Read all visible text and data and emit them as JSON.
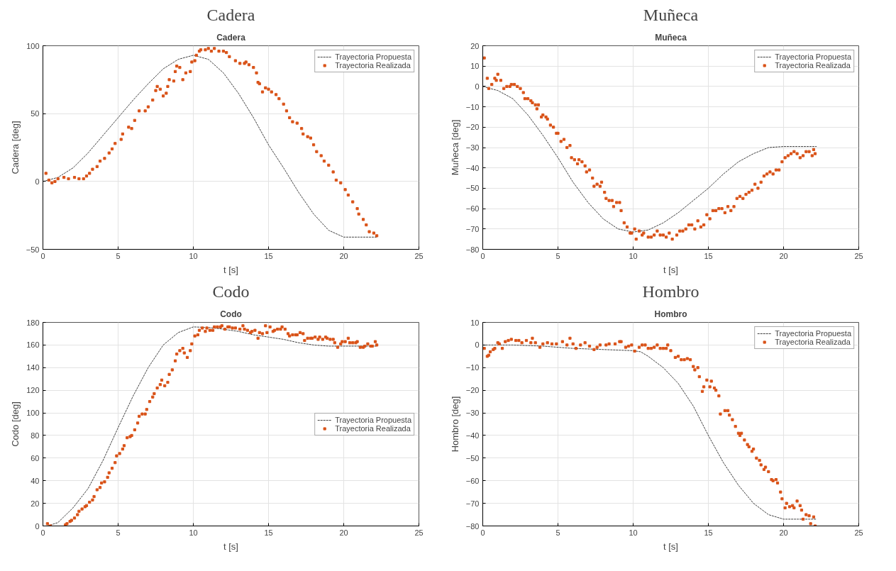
{
  "chart_data": [
    {
      "type": "scatter",
      "title": "Cadera",
      "subtitle": "Cadera",
      "xlabel": "t [s]",
      "ylabel": "Cadera [deg]",
      "xlim": [
        0,
        25
      ],
      "xticks": [
        0,
        5,
        10,
        15,
        20,
        25
      ],
      "ylim": [
        -50,
        100
      ],
      "yticks": [
        -50,
        0,
        50,
        100
      ],
      "grid": true,
      "legend": "top right",
      "series": [
        {
          "name": "Trayectoria Propuesta",
          "type": "line",
          "line_style": "dashed",
          "marker": "none",
          "color": "#404040",
          "x": [
            0,
            1,
            2,
            3,
            4,
            5,
            6,
            7,
            8,
            9,
            10,
            11,
            12,
            13,
            14,
            15,
            16,
            17,
            18,
            19,
            20,
            21,
            22.2
          ],
          "values": [
            0,
            3,
            10,
            21,
            34,
            47,
            60,
            72,
            83,
            90,
            93,
            90,
            80,
            65,
            47,
            27,
            10,
            -8,
            -24,
            -36,
            -41,
            -41,
            -41
          ]
        },
        {
          "name": "Trayectoria Realizada",
          "type": "scatter",
          "marker": "square",
          "color": "#d95319",
          "x": [
            0.2,
            0.4,
            0.6,
            0.8,
            1.0,
            1.4,
            1.7,
            2.1,
            2.4,
            2.7,
            2.9,
            3.1,
            3.3,
            3.6,
            3.8,
            4.1,
            4.4,
            4.6,
            4.8,
            5.2,
            5.3,
            5.7,
            5.9,
            6.1,
            6.4,
            6.8,
            7.0,
            7.3,
            7.5,
            7.6,
            7.8,
            8.0,
            8.2,
            8.3,
            8.4,
            8.7,
            8.8,
            8.9,
            9.1,
            9.3,
            9.5,
            9.8,
            9.9,
            10.1,
            10.2,
            10.4,
            10.5,
            10.8,
            11.0,
            11.2,
            11.4,
            11.7,
            12.0,
            12.2,
            12.4,
            12.8,
            13.1,
            13.4,
            13.5,
            13.7,
            14.0,
            14.2,
            14.3,
            14.4,
            14.6,
            14.8,
            15.0,
            15.2,
            15.5,
            15.7,
            16.0,
            16.2,
            16.4,
            16.6,
            16.9,
            17.2,
            17.3,
            17.6,
            17.8,
            18.0,
            18.2,
            18.5,
            18.7,
            19.0,
            19.3,
            19.5,
            19.8,
            20.1,
            20.3,
            20.6,
            20.9,
            21.0,
            21.3,
            21.5,
            21.7,
            22.0,
            22.2
          ],
          "values": [
            6,
            1,
            -1,
            0,
            2,
            3,
            2,
            3,
            2,
            2,
            4,
            6,
            9,
            11,
            15,
            17,
            21,
            24,
            28,
            31,
            35,
            40,
            39,
            45,
            52,
            52,
            55,
            60,
            67,
            70,
            68,
            63,
            65,
            70,
            75,
            74,
            81,
            85,
            84,
            75,
            80,
            81,
            88,
            89,
            93,
            96,
            97,
            97,
            98,
            96,
            98,
            96,
            96,
            95,
            92,
            89,
            87,
            87,
            88,
            86,
            84,
            80,
            73,
            72,
            66,
            69,
            68,
            66,
            64,
            61,
            57,
            52,
            47,
            44,
            43,
            39,
            35,
            33,
            32,
            27,
            22,
            19,
            15,
            12,
            7,
            1,
            -1,
            -6,
            -10,
            -15,
            -20,
            -24,
            -28,
            -32,
            -37,
            -38,
            -40
          ]
        }
      ]
    },
    {
      "type": "scatter",
      "title": "Muñeca",
      "subtitle": "Muñeca",
      "xlabel": "t [s]",
      "ylabel": "Muñeca [deg]",
      "xlim": [
        0,
        25
      ],
      "xticks": [
        0,
        5,
        10,
        15,
        20,
        25
      ],
      "ylim": [
        -80,
        20
      ],
      "yticks": [
        -80,
        -70,
        -60,
        -50,
        -40,
        -30,
        -20,
        -10,
        0,
        10,
        20
      ],
      "grid": true,
      "legend": "top right",
      "series": [
        {
          "name": "Trayectoria Propuesta",
          "type": "line",
          "line_style": "dashed",
          "marker": "none",
          "color": "#404040",
          "x": [
            0,
            1,
            2,
            3,
            4,
            5,
            6,
            7,
            8,
            9,
            10,
            11,
            12,
            13,
            14,
            15,
            16,
            17,
            18,
            19,
            20,
            21,
            22.2
          ],
          "values": [
            0,
            -2,
            -6,
            -14,
            -24,
            -35,
            -47,
            -57,
            -65,
            -70,
            -71.5,
            -70.5,
            -67,
            -62,
            -56,
            -50,
            -43,
            -37,
            -33,
            -30,
            -29.5,
            -29.5,
            -29.5
          ]
        },
        {
          "name": "Trayectoria Realizada",
          "type": "scatter",
          "marker": "square",
          "color": "#d95319",
          "x": [
            0.1,
            0.3,
            0.4,
            0.6,
            0.8,
            0.9,
            1.0,
            1.2,
            1.4,
            1.6,
            1.8,
            1.9,
            2.1,
            2.3,
            2.5,
            2.7,
            2.8,
            3.0,
            3.2,
            3.3,
            3.5,
            3.6,
            3.7,
            3.9,
            4.0,
            4.2,
            4.3,
            4.5,
            4.7,
            4.9,
            5.0,
            5.2,
            5.4,
            5.6,
            5.8,
            5.9,
            6.1,
            6.3,
            6.4,
            6.6,
            6.8,
            6.9,
            7.1,
            7.3,
            7.4,
            7.6,
            7.8,
            7.9,
            8.1,
            8.2,
            8.4,
            8.6,
            8.7,
            8.9,
            9.1,
            9.2,
            9.4,
            9.6,
            9.8,
            9.9,
            10.1,
            10.2,
            10.4,
            10.6,
            10.7,
            11.0,
            11.2,
            11.4,
            11.6,
            11.8,
            12.0,
            12.2,
            12.4,
            12.6,
            12.9,
            13.1,
            13.3,
            13.5,
            13.7,
            13.9,
            14.1,
            14.3,
            14.5,
            14.7,
            14.9,
            15.1,
            15.3,
            15.5,
            15.7,
            15.9,
            16.1,
            16.3,
            16.5,
            16.7,
            16.9,
            17.1,
            17.3,
            17.5,
            17.7,
            17.9,
            18.1,
            18.3,
            18.5,
            18.7,
            18.9,
            19.1,
            19.3,
            19.5,
            19.7,
            19.9,
            20.1,
            20.3,
            20.5,
            20.7,
            20.9,
            21.1,
            21.3,
            21.5,
            21.7,
            21.9,
            22.0,
            22.1
          ],
          "values": [
            14,
            4,
            -1,
            1,
            4,
            3,
            6,
            3,
            -1,
            0,
            0,
            1,
            1,
            0,
            -1,
            -3,
            -6,
            -6,
            -7,
            -8,
            -9,
            -11,
            -9,
            -15,
            -14,
            -15,
            -16,
            -19,
            -20,
            -23,
            -23,
            -27,
            -26,
            -30,
            -29,
            -35,
            -36,
            -38,
            -36,
            -37,
            -39,
            -42,
            -41,
            -45,
            -49,
            -48,
            -49,
            -47,
            -52,
            -55,
            -56,
            -56,
            -59,
            -57,
            -57,
            -61,
            -67,
            -69,
            -72,
            -72,
            -70,
            -75,
            -71,
            -73,
            -72,
            -74,
            -74,
            -73,
            -71,
            -73,
            -73,
            -74,
            -72,
            -75,
            -73,
            -71,
            -71,
            -70,
            -68,
            -68,
            -70,
            -66,
            -69,
            -68,
            -63,
            -65,
            -61,
            -61,
            -60,
            -60,
            -62,
            -59,
            -61,
            -59,
            -55,
            -54,
            -55,
            -53,
            -52,
            -51,
            -48,
            -50,
            -47,
            -44,
            -43,
            -42,
            -43,
            -41,
            -41,
            -37,
            -35,
            -34,
            -33,
            -32,
            -33,
            -35,
            -34,
            -32,
            -32,
            -34,
            -31,
            -33
          ]
        }
      ]
    },
    {
      "type": "scatter",
      "title": "Codo",
      "subtitle": "Codo",
      "xlabel": "t [s]",
      "ylabel": "Codo [deg]",
      "xlim": [
        0,
        25
      ],
      "xticks": [
        0,
        5,
        10,
        15,
        20,
        25
      ],
      "ylim": [
        0,
        180
      ],
      "yticks": [
        0,
        20,
        40,
        60,
        80,
        100,
        120,
        140,
        160,
        180
      ],
      "grid": true,
      "legend": "right",
      "series": [
        {
          "name": "Trayectoria Propuesta",
          "type": "line",
          "line_style": "dashed",
          "marker": "none",
          "color": "#404040",
          "x": [
            0.3,
            1,
            2,
            3,
            4,
            5,
            6,
            7,
            8,
            9,
            10,
            11,
            12,
            13,
            14,
            15,
            16,
            17,
            18,
            19,
            20,
            21,
            22.2
          ],
          "values": [
            0,
            3,
            16,
            33,
            58,
            87,
            115,
            140,
            160,
            171,
            176,
            175.5,
            174,
            172,
            169,
            167,
            165,
            162,
            160,
            159,
            159,
            159,
            159
          ]
        },
        {
          "name": "Trayectoria Realizada",
          "type": "scatter",
          "marker": "square",
          "color": "#d95319",
          "x": [
            0.3,
            0.5,
            1.5,
            1.6,
            1.8,
            1.9,
            2.1,
            2.3,
            2.4,
            2.6,
            2.8,
            2.9,
            3.1,
            3.3,
            3.4,
            3.6,
            3.8,
            3.9,
            4.1,
            4.3,
            4.4,
            4.6,
            4.8,
            4.9,
            5.1,
            5.3,
            5.4,
            5.6,
            5.8,
            5.9,
            6.1,
            6.3,
            6.4,
            6.6,
            6.8,
            6.9,
            7.1,
            7.3,
            7.4,
            7.6,
            7.8,
            7.9,
            8.1,
            8.3,
            8.4,
            8.6,
            8.8,
            8.9,
            9.1,
            9.3,
            9.4,
            9.6,
            9.8,
            9.9,
            10.1,
            10.3,
            10.4,
            10.6,
            10.8,
            10.9,
            11.1,
            11.3,
            11.4,
            11.6,
            11.8,
            11.9,
            12.1,
            12.3,
            12.4,
            12.6,
            12.8,
            13.1,
            13.3,
            13.4,
            13.6,
            13.8,
            13.9,
            14.1,
            14.3,
            14.4,
            14.6,
            14.8,
            14.9,
            15.1,
            15.3,
            15.4,
            15.6,
            15.8,
            15.9,
            16.1,
            16.3,
            16.4,
            16.6,
            16.8,
            16.9,
            17.1,
            17.3,
            17.4,
            17.6,
            17.8,
            17.9,
            18.1,
            18.3,
            18.4,
            18.6,
            18.8,
            18.9,
            19.1,
            19.3,
            19.4,
            19.6,
            19.8,
            19.9,
            20.1,
            20.3,
            20.4,
            20.6,
            20.8,
            20.9,
            21.1,
            21.3,
            21.4,
            21.6,
            21.8,
            21.9,
            22.1,
            22.2
          ],
          "values": [
            2,
            0,
            1,
            2,
            4,
            5,
            7,
            10,
            13,
            15,
            17,
            18,
            21,
            23,
            26,
            32,
            34,
            38,
            39,
            43,
            47,
            51,
            56,
            62,
            64,
            68,
            71,
            78,
            79,
            80,
            85,
            91,
            97,
            99,
            99,
            103,
            110,
            114,
            117,
            122,
            125,
            129,
            124,
            127,
            134,
            138,
            146,
            152,
            155,
            157,
            153,
            149,
            155,
            161,
            168,
            169,
            173,
            175,
            172,
            175,
            173,
            173,
            176,
            176,
            176,
            177,
            174,
            176,
            176,
            175,
            175,
            174,
            177,
            174,
            173,
            171,
            172,
            173,
            166,
            171,
            170,
            177,
            171,
            176,
            172,
            173,
            174,
            174,
            176,
            174,
            170,
            168,
            169,
            169,
            169,
            171,
            170,
            164,
            166,
            166,
            166,
            167,
            165,
            167,
            165,
            167,
            166,
            165,
            165,
            162,
            158,
            161,
            163,
            163,
            166,
            162,
            162,
            162,
            163,
            158,
            158,
            159,
            161,
            159,
            159,
            163,
            160
          ]
        }
      ]
    },
    {
      "type": "scatter",
      "title": "Hombro",
      "subtitle": "Hombro",
      "xlabel": "t [s]",
      "ylabel": "Hombro [deg]",
      "xlim": [
        0,
        25
      ],
      "xticks": [
        0,
        5,
        10,
        15,
        20,
        25
      ],
      "ylim": [
        -80,
        10
      ],
      "yticks": [
        -80,
        -70,
        -60,
        -50,
        -40,
        -30,
        -20,
        -10,
        0,
        10
      ],
      "grid": true,
      "legend": "top right",
      "series": [
        {
          "name": "Trayectoria Propuesta",
          "type": "line",
          "line_style": "dashed",
          "marker": "none",
          "color": "#404040",
          "x": [
            0,
            2,
            4,
            6,
            8,
            10,
            10.5,
            11,
            12,
            13,
            14,
            15,
            16,
            17,
            18,
            19,
            20,
            21,
            22.2
          ],
          "values": [
            0,
            0,
            -0.5,
            -1.5,
            -2,
            -2.5,
            -3,
            -5,
            -10,
            -17,
            -27,
            -40,
            -52,
            -62,
            -70,
            -75,
            -77,
            -77,
            -77
          ]
        },
        {
          "name": "Trayectoria Realizada",
          "type": "scatter",
          "marker": "square",
          "color": "#d95319",
          "x": [
            0.1,
            0.3,
            0.4,
            0.5,
            0.7,
            0.8,
            1.0,
            1.1,
            1.3,
            1.5,
            1.7,
            1.9,
            2.2,
            2.4,
            2.6,
            2.9,
            3.2,
            3.3,
            3.5,
            3.8,
            4.0,
            4.3,
            4.6,
            4.9,
            5.3,
            5.6,
            5.8,
            6.0,
            6.2,
            6.5,
            6.8,
            7.1,
            7.4,
            7.6,
            7.8,
            8.2,
            8.4,
            8.8,
            9.1,
            9.2,
            9.5,
            9.7,
            9.9,
            10.1,
            10.4,
            10.6,
            10.8,
            11.0,
            11.2,
            11.4,
            11.6,
            11.8,
            12.0,
            12.2,
            12.3,
            12.5,
            12.8,
            13.0,
            13.2,
            13.4,
            13.6,
            13.8,
            14.0,
            14.1,
            14.3,
            14.4,
            14.6,
            14.7,
            14.9,
            15.1,
            15.2,
            15.4,
            15.5,
            15.7,
            15.8,
            16.1,
            16.3,
            16.4,
            16.6,
            16.8,
            17.0,
            17.1,
            17.2,
            17.4,
            17.6,
            17.7,
            17.9,
            18.0,
            18.2,
            18.4,
            18.5,
            18.7,
            18.8,
            19.0,
            19.2,
            19.3,
            19.5,
            19.6,
            19.8,
            19.9,
            20.1,
            20.2,
            20.4,
            20.6,
            20.7,
            20.9,
            21.1,
            21.2,
            21.3,
            21.5,
            21.7,
            21.8,
            22.0,
            22.1
          ],
          "values": [
            -1.5,
            -5,
            -4.5,
            -3,
            -2,
            -1.5,
            1,
            0.5,
            -1.5,
            1.5,
            2,
            2.5,
            2,
            2,
            1,
            2,
            1,
            3,
            1,
            -1,
            0.5,
            1,
            0.5,
            0.5,
            1.5,
            0,
            3,
            0.5,
            -1.5,
            0,
            1,
            -0.5,
            -2,
            -1,
            0,
            0,
            0.5,
            0.5,
            1.5,
            1.5,
            -1,
            -0.5,
            0,
            -2.7,
            -1,
            0,
            0,
            -1.5,
            -1.5,
            -1,
            0,
            -1.5,
            -1.5,
            -1.5,
            0,
            -2.5,
            -5.5,
            -5,
            -6.5,
            -6.5,
            -6,
            -6.5,
            -9.5,
            -11,
            -10,
            -14,
            -20.5,
            -18.5,
            -15.5,
            -18.5,
            -16,
            -19,
            -20,
            -22.5,
            -30.5,
            -29,
            -29,
            -31,
            -33,
            -36,
            -39,
            -40,
            -39,
            -42,
            -44,
            -45,
            -47,
            -46,
            -50,
            -51,
            -53,
            -55,
            -54,
            -56,
            -59.5,
            -60,
            -59.5,
            -61,
            -65,
            -68,
            -72,
            -70,
            -71.5,
            -71,
            -72,
            -69,
            -71,
            -73,
            -77,
            -75,
            -75.5,
            -79,
            -76,
            -80
          ]
        }
      ]
    }
  ]
}
